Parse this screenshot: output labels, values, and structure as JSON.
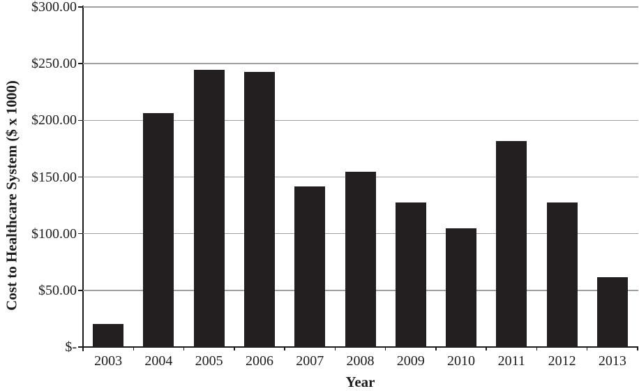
{
  "chart_data": {
    "type": "bar",
    "title": "",
    "xlabel": "Year",
    "ylabel": "Cost to Healthcare System ($ x 1000)",
    "categories": [
      "2003",
      "2004",
      "2005",
      "2006",
      "2007",
      "2008",
      "2009",
      "2010",
      "2011",
      "2012",
      "2013"
    ],
    "values": [
      20.5,
      206.5,
      244.5,
      243,
      141.5,
      154.5,
      127.5,
      105,
      182,
      127.5,
      61.5
    ],
    "ylim": [
      0,
      300
    ],
    "y_ticks": [
      {
        "value": 0,
        "label": "$-"
      },
      {
        "value": 50,
        "label": "$50.00"
      },
      {
        "value": 100,
        "label": "$100.00"
      },
      {
        "value": 150,
        "label": "$150.00"
      },
      {
        "value": 200,
        "label": "$200.00"
      },
      {
        "value": 250,
        "label": "$250.00"
      },
      {
        "value": 300,
        "label": "$300.00"
      }
    ],
    "grid": "horizontal-only",
    "legend": "none",
    "colors": {
      "bar": "#231f20",
      "gridline": "#a0a0a0",
      "axis": "#1a1a1a",
      "text": "#1c1c1c",
      "background": "#ffffff"
    }
  }
}
